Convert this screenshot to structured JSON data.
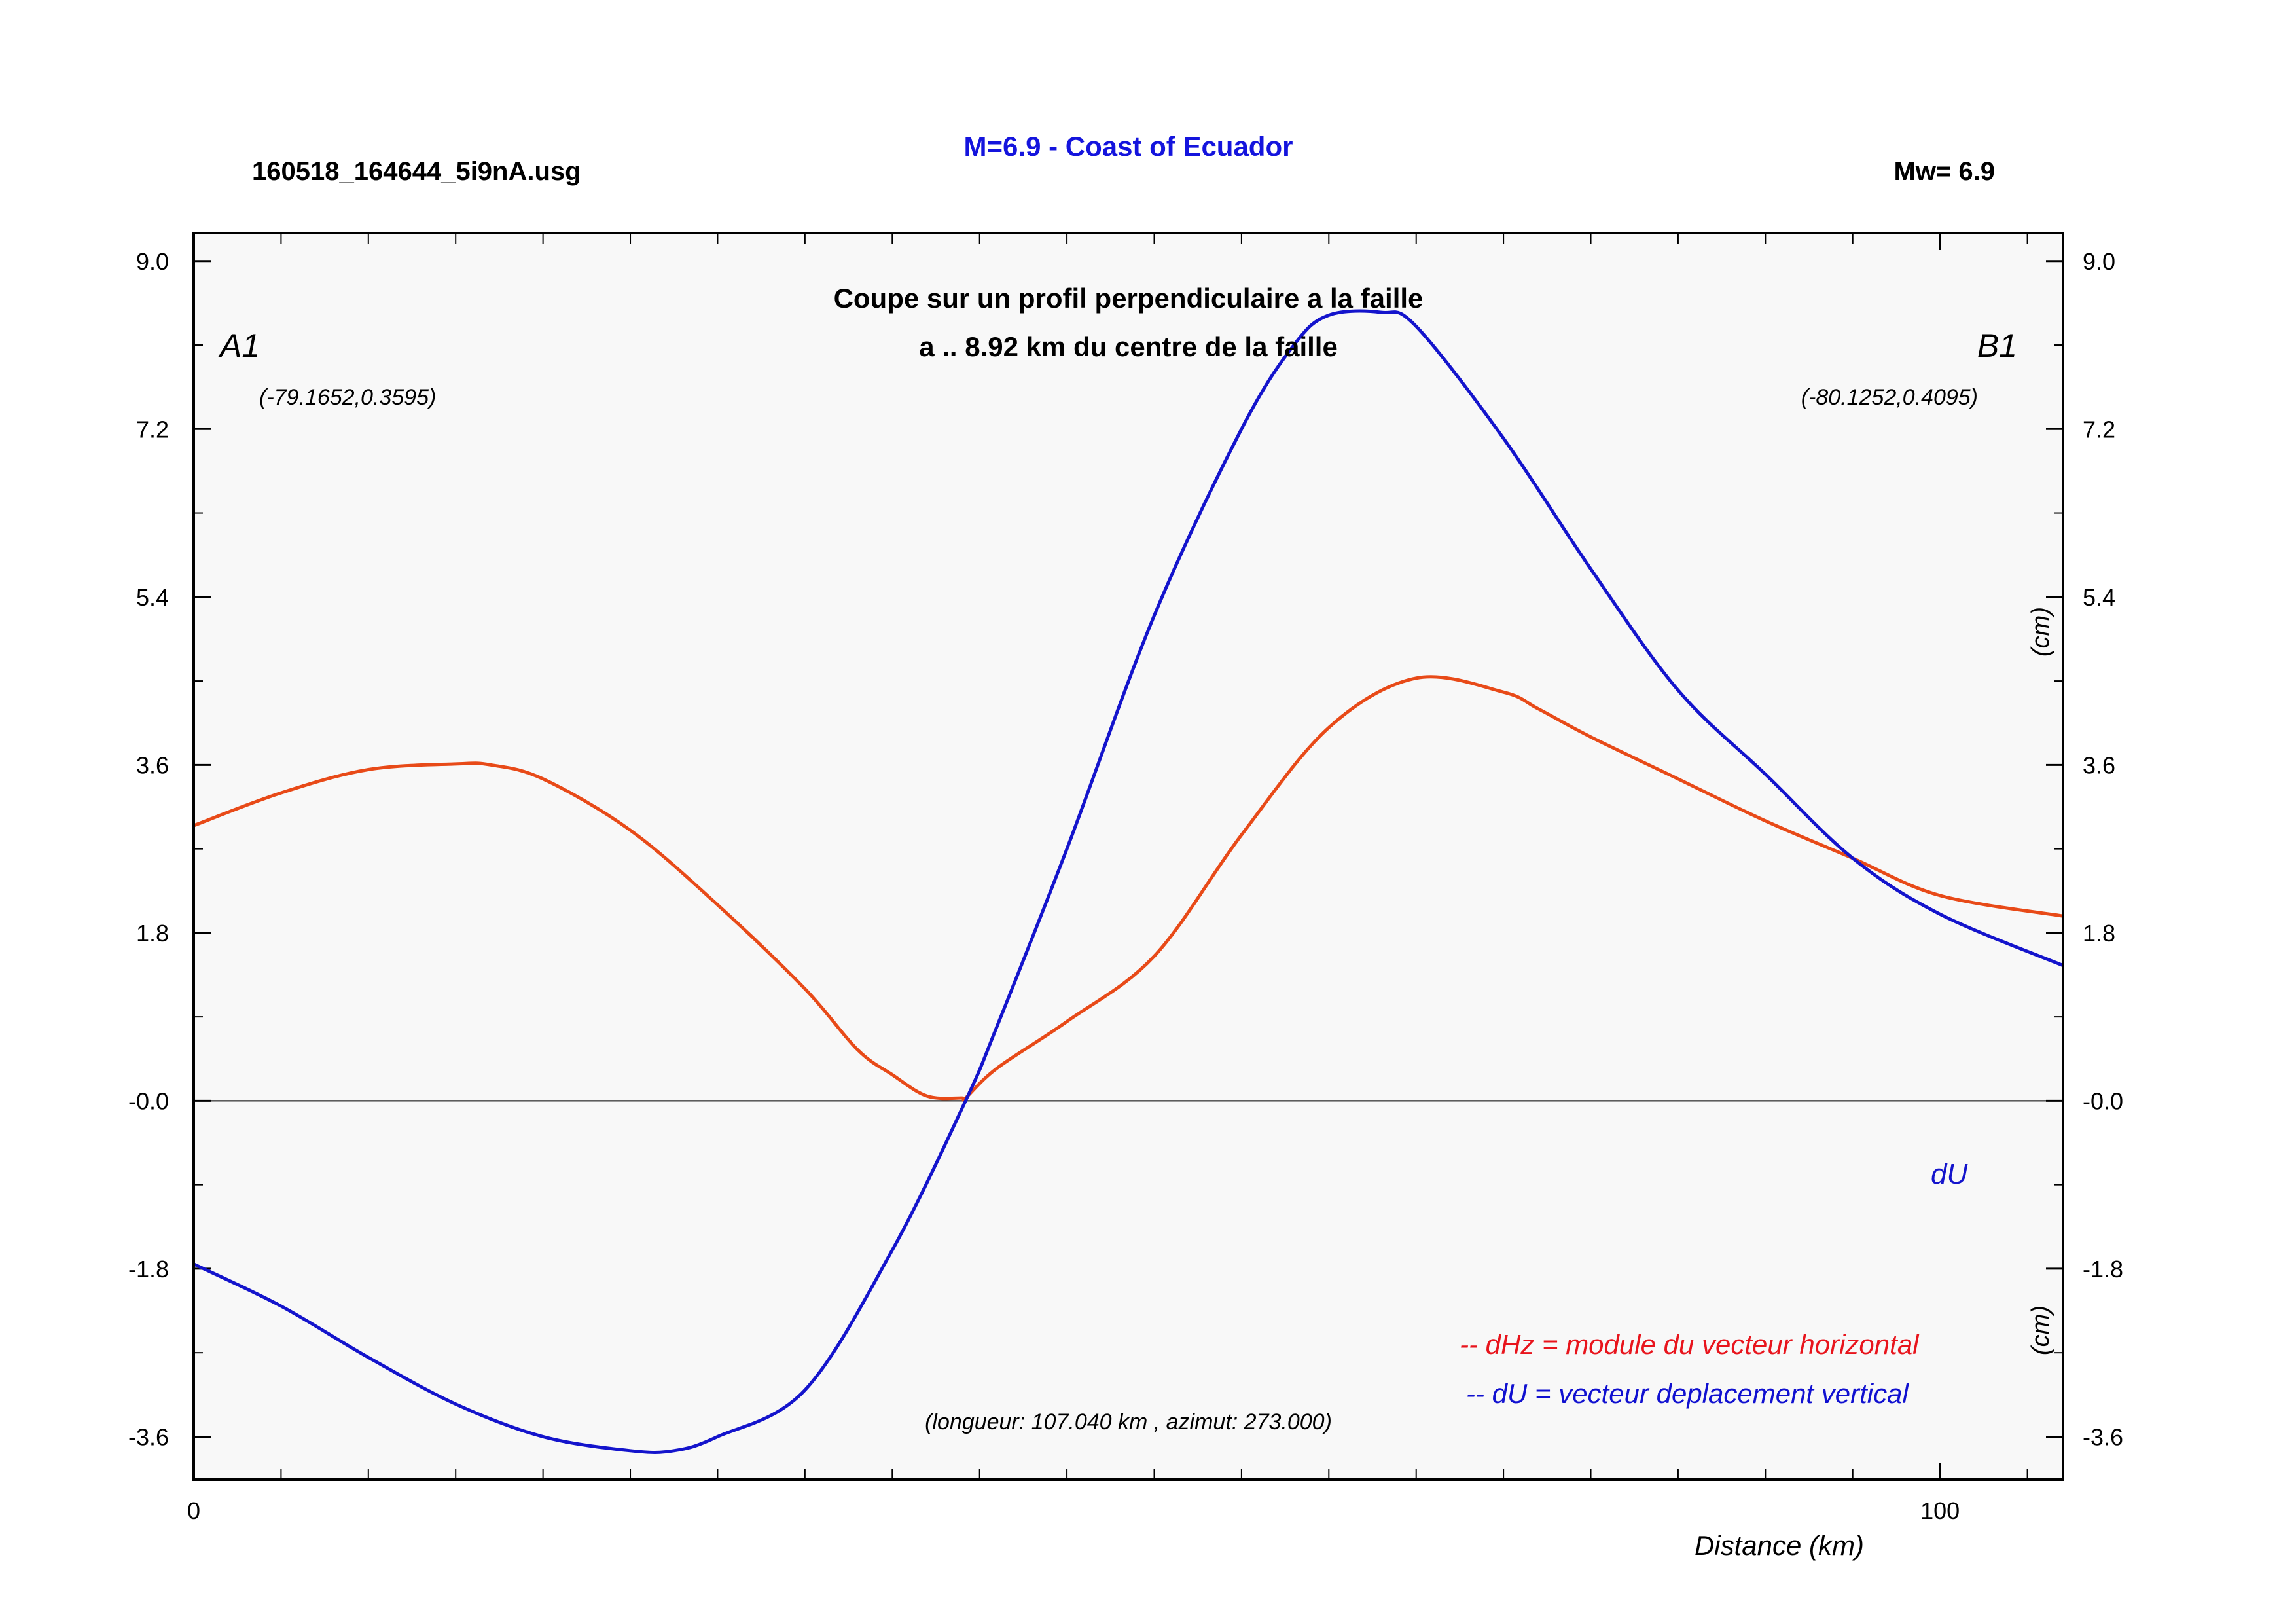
{
  "header": {
    "file_label": "160518_164644_5i9nA.usg",
    "title": "M=6.9 - Coast of Ecuador",
    "magnitude_label": "Mw= 6.9"
  },
  "chart_data": {
    "type": "line",
    "subtitle_line1": "Coupe sur un profil perpendiculaire a la faille",
    "subtitle_line2": "a .. 8.92 km du centre de la faille",
    "point_a": {
      "label": "A1",
      "coords": "(-79.1652,0.3595)"
    },
    "point_b": {
      "label": "B1",
      "coords": "(-80.1252,0.4095)"
    },
    "xlabel": "Distance (km)",
    "ylabel_right": "(cm)",
    "ylabel_right_lower": "(cm)",
    "du_label": "dU",
    "profile_info": "(longueur: 107.040 km , azimut: 273.000)",
    "xlim": [
      0,
      107.04
    ],
    "ylim": [
      -4.06,
      9.3
    ],
    "x_ticks": [
      0,
      100
    ],
    "x_tick_labels": [
      "0",
      "100"
    ],
    "y_ticks": [
      -3.6,
      -1.8,
      0,
      1.8,
      3.6,
      5.4,
      7.2,
      9.0
    ],
    "y_tick_labels": [
      "-3.6",
      "-1.8",
      "-0.0",
      "1.8",
      "3.6",
      "5.4",
      "7.2",
      "9.0"
    ],
    "grid": false,
    "legend": [
      {
        "text": "-- dHz = module du vecteur horizontal",
        "color": "#e8141c"
      },
      {
        "text": "-- dU =  vecteur deplacement vertical",
        "color": "#1010d0"
      }
    ],
    "series": [
      {
        "name": "dHz",
        "color": "#e84a18",
        "x": [
          0,
          5,
          10,
          15,
          17,
          20,
          25,
          30,
          35,
          38,
          40,
          42,
          44,
          44.2,
          46,
          50,
          55,
          60,
          65,
          70,
          75,
          77,
          80,
          85,
          90,
          95,
          100,
          107.04
        ],
        "y": [
          2.95,
          3.3,
          3.55,
          3.61,
          3.6,
          3.45,
          2.9,
          2.1,
          1.2,
          0.55,
          0.28,
          0.05,
          0.03,
          0.03,
          0.35,
          0.85,
          1.55,
          2.85,
          4.0,
          4.53,
          4.38,
          4.2,
          3.9,
          3.45,
          3.0,
          2.6,
          2.2,
          1.98
        ]
      },
      {
        "name": "dU",
        "color": "#1414cc",
        "x": [
          0,
          5,
          10,
          15,
          20,
          25,
          27.5,
          30,
          35,
          40,
          44.2,
          46,
          50,
          55,
          60,
          63,
          65,
          68,
          70,
          75,
          80,
          85,
          90,
          95,
          100,
          107.04
        ],
        "y": [
          -1.75,
          -2.2,
          -2.75,
          -3.25,
          -3.6,
          -3.75,
          -3.75,
          -3.6,
          -3.1,
          -1.6,
          0.0,
          0.8,
          2.7,
          5.2,
          7.2,
          8.1,
          8.42,
          8.45,
          8.3,
          7.1,
          5.7,
          4.4,
          3.5,
          2.6,
          2.0,
          1.45
        ]
      }
    ]
  }
}
